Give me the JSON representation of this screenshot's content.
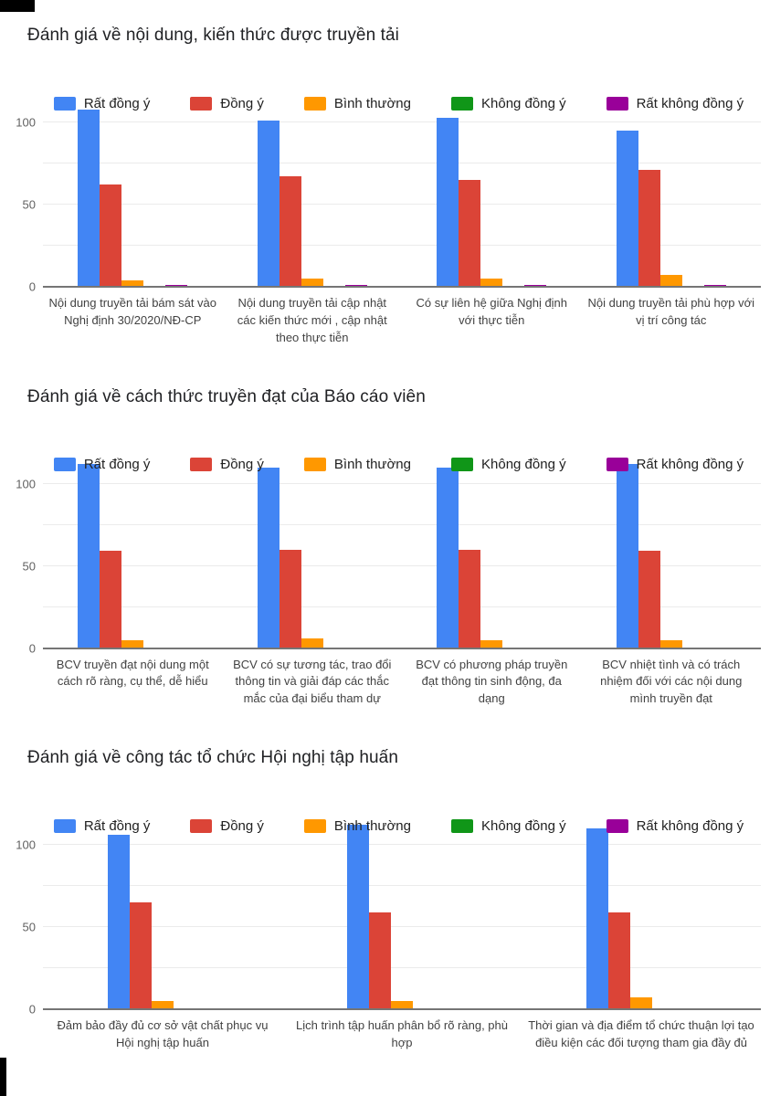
{
  "palette": {
    "series_colors": [
      "#4285F4",
      "#DB4437",
      "#FF9800",
      "#109618",
      "#990099"
    ],
    "artifact_color": "#000000",
    "baseline_color": "#757575",
    "gridline_color": "#ebebeb"
  },
  "chart_data": [
    {
      "type": "bar",
      "title": "Đánh giá về nội dung, kiến thức được truyền tải",
      "legend_position": "top",
      "grid": true,
      "ylim": [
        0,
        115
      ],
      "gridlines": [
        0,
        25,
        50,
        75,
        100
      ],
      "yticks": [
        {
          "label": "0",
          "value": 0
        },
        {
          "label": "50",
          "value": 50
        },
        {
          "label": "100",
          "value": 100
        }
      ],
      "categories": [
        "Nội dung truyền tải bám sát vào Nghị định 30/2020/NĐ-CP",
        "Nội dung truyền tải cập nhật các kiến thức mới , cập nhật theo thực tiễn",
        "Có sự liên hệ giữa Nghị định với thực tiễn",
        "Nội dung truyền tải phù hợp với vị trí công tác"
      ],
      "series": [
        {
          "name": "Rất đồng ý",
          "values": [
            108,
            101,
            103,
            95
          ]
        },
        {
          "name": "Đồng ý",
          "values": [
            62,
            67,
            65,
            71
          ]
        },
        {
          "name": "Bình thường",
          "values": [
            4,
            5,
            5,
            7
          ]
        },
        {
          "name": "Không đồng ý",
          "values": [
            0,
            0,
            0,
            0
          ]
        },
        {
          "name": "Rất không đồng ý",
          "values": [
            1,
            1,
            1,
            1
          ]
        }
      ]
    },
    {
      "type": "bar",
      "title": "Đánh giá về cách thức truyền đạt của Báo cáo viên",
      "legend_position": "top",
      "grid": true,
      "ylim": [
        0,
        115
      ],
      "gridlines": [
        0,
        25,
        50,
        75,
        100
      ],
      "yticks": [
        {
          "label": "0",
          "value": 0
        },
        {
          "label": "50",
          "value": 50
        },
        {
          "label": "100",
          "value": 100
        }
      ],
      "categories": [
        "BCV truyền đạt nội dung một cách rõ ràng, cụ thể, dễ hiểu",
        "BCV có sự tương tác, trao đổi thông tin và giải đáp các thắc mắc của đại biểu tham dự",
        "BCV có phương pháp truyền đạt thông tin sinh động, đa dạng",
        "BCV nhiệt tình và có trách nhiệm đối với các nội dung mình truyền đạt"
      ],
      "series": [
        {
          "name": "Rất đồng ý",
          "values": [
            112,
            110,
            110,
            112
          ]
        },
        {
          "name": "Đồng ý",
          "values": [
            59,
            60,
            60,
            59
          ]
        },
        {
          "name": "Bình thường",
          "values": [
            5,
            6,
            5,
            5
          ]
        },
        {
          "name": "Không đồng ý",
          "values": [
            0,
            0,
            0,
            0
          ]
        },
        {
          "name": "Rất không đồng ý",
          "values": [
            0,
            0,
            0,
            0
          ]
        }
      ]
    },
    {
      "type": "bar",
      "title": "Đánh giá về công tác tổ chức Hội nghị tập huấn",
      "legend_position": "top",
      "grid": true,
      "ylim": [
        0,
        115
      ],
      "gridlines": [
        0,
        25,
        50,
        75,
        100
      ],
      "yticks": [
        {
          "label": "0",
          "value": 0
        },
        {
          "label": "50",
          "value": 50
        },
        {
          "label": "100",
          "value": 100
        }
      ],
      "categories": [
        "Đảm bảo đầy đủ cơ sở vật chất phục vụ Hội nghị tập huấn",
        "Lịch trình tập huấn phân bổ rõ ràng, phù hợp",
        "Thời gian và địa điểm tổ chức thuận lợi tạo điều kiện các đối tượng tham gia đầy đủ"
      ],
      "series": [
        {
          "name": "Rất đồng ý",
          "values": [
            106,
            112,
            110
          ]
        },
        {
          "name": "Đồng ý",
          "values": [
            65,
            59,
            59
          ]
        },
        {
          "name": "Bình thường",
          "values": [
            5,
            5,
            7
          ]
        },
        {
          "name": "Không đồng ý",
          "values": [
            0,
            0,
            0
          ]
        },
        {
          "name": "Rất không đồng ý",
          "values": [
            0,
            0,
            0
          ]
        }
      ]
    }
  ]
}
